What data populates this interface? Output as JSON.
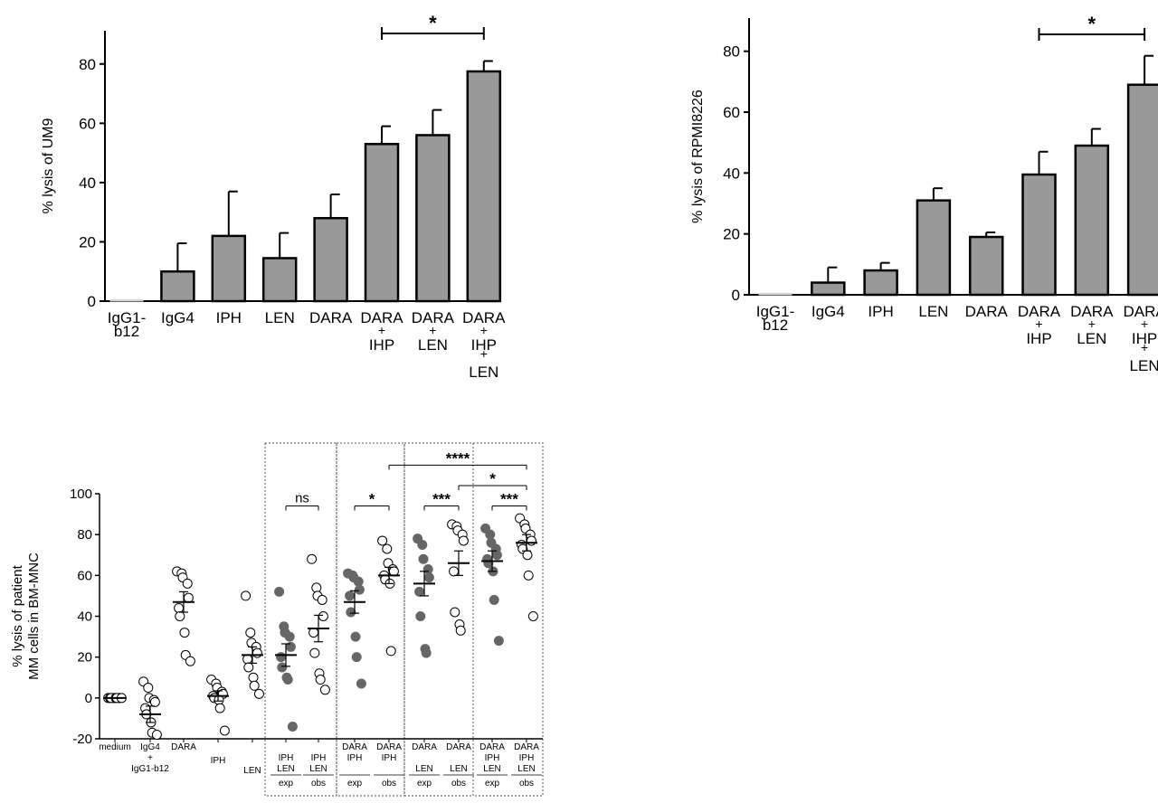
{
  "chart_data": [
    {
      "type": "bar",
      "title": "",
      "xlabel": "",
      "ylabel": "% lysis of UM9",
      "ylim": [
        0,
        90
      ],
      "yticks": [
        0,
        20,
        40,
        60,
        80
      ],
      "categories": [
        [
          "IgG1-",
          "b12"
        ],
        [
          "IgG4"
        ],
        [
          "IPH"
        ],
        [
          "LEN"
        ],
        [
          "DARA"
        ],
        [
          "DARA",
          "+",
          "IHP"
        ],
        [
          "DARA",
          "+",
          "LEN"
        ],
        [
          "DARA",
          "+",
          "IHP",
          "+",
          "LEN"
        ]
      ],
      "values": [
        0.5,
        10,
        22,
        14.5,
        28,
        53,
        56,
        77.5
      ],
      "errors": [
        0,
        9.5,
        15,
        8.5,
        8,
        6,
        8.5,
        3.5
      ],
      "bar_colors": [
        "#d4d4d4",
        "#999999",
        "#999999",
        "#999999",
        "#999999",
        "#999999",
        "#999999",
        "#999999"
      ],
      "significance": [
        {
          "from": 5,
          "to": 7,
          "label": "*"
        }
      ]
    },
    {
      "type": "bar",
      "title": "",
      "xlabel": "",
      "ylabel": "% lysis of RPMI8226",
      "ylim": [
        0,
        90
      ],
      "yticks": [
        0,
        20,
        40,
        60,
        80
      ],
      "categories": [
        [
          "IgG1-",
          "b12"
        ],
        [
          "IgG4"
        ],
        [
          "IPH"
        ],
        [
          "LEN"
        ],
        [
          "DARA"
        ],
        [
          "DARA",
          "+",
          "IHP"
        ],
        [
          "DARA",
          "+",
          "LEN"
        ],
        [
          "DARA",
          "+",
          "IHP",
          "+",
          "LEN"
        ]
      ],
      "values": [
        0.5,
        4,
        8,
        31,
        19,
        39.5,
        49,
        69
      ],
      "errors": [
        0,
        5,
        2.5,
        4,
        1.5,
        7.5,
        5.5,
        9.5
      ],
      "bar_colors": [
        "#d4d4d4",
        "#999999",
        "#999999",
        "#999999",
        "#999999",
        "#999999",
        "#999999",
        "#999999"
      ],
      "significance": [
        {
          "from": 5,
          "to": 7,
          "label": "*"
        }
      ]
    },
    {
      "type": "scatter",
      "title": "",
      "xlabel": "",
      "ylabel": [
        "% lysis of patient",
        "MM cells in BM-MNC"
      ],
      "ylim": [
        -20,
        100
      ],
      "yticks": [
        -20,
        0,
        20,
        40,
        60,
        80,
        100
      ],
      "groups": [
        {
          "labels": [
            "medium"
          ],
          "sublabel": "",
          "filled": false,
          "mean": 0,
          "sem": 0.5,
          "points": [
            0,
            0,
            0,
            0,
            0,
            0,
            0,
            0,
            0,
            0
          ]
        },
        {
          "labels": [
            "IgG4",
            "+",
            "IgG1-b12"
          ],
          "sublabel": "",
          "filled": false,
          "mean": -8,
          "sem": 4,
          "points": [
            8,
            5,
            0,
            -1,
            -2,
            -5,
            -8,
            -12,
            -17,
            -18
          ]
        },
        {
          "labels": [
            "DARA"
          ],
          "sublabel": "",
          "filled": false,
          "mean": 47,
          "sem": 5,
          "points": [
            62,
            61,
            59,
            56,
            49,
            44,
            40,
            32,
            21,
            18
          ]
        },
        {
          "labels": [
            "IPH"
          ],
          "sublabel": "",
          "filled": false,
          "mean": 1,
          "sem": 2.5,
          "points": [
            9,
            7,
            5,
            3,
            2,
            1,
            0,
            -1,
            -5,
            -16
          ]
        },
        {
          "labels": [
            "LEN"
          ],
          "sublabel": "",
          "filled": false,
          "mean": 21,
          "sem": 4,
          "points": [
            50,
            32,
            27,
            25,
            22,
            19,
            15,
            10,
            6,
            2
          ]
        },
        {
          "labels": [
            "IPH",
            "LEN"
          ],
          "sublabel": "exp",
          "filled": true,
          "mean": 21,
          "sem": 5.5,
          "points": [
            52,
            35,
            32,
            30,
            25,
            20,
            15,
            10,
            9,
            -14
          ]
        },
        {
          "labels": [
            "IPH",
            "LEN"
          ],
          "sublabel": "obs",
          "filled": false,
          "mean": 34,
          "sem": 6.5,
          "points": [
            68,
            54,
            50,
            48,
            40,
            32,
            22,
            12,
            9,
            4
          ]
        },
        {
          "labels": [
            "DARA",
            "IPH"
          ],
          "sublabel": "exp",
          "filled": true,
          "mean": 47,
          "sem": 5.5,
          "points": [
            61,
            60,
            59,
            57,
            53,
            50,
            42,
            30,
            20,
            7
          ]
        },
        {
          "labels": [
            "DARA",
            "IPH"
          ],
          "sublabel": "obs",
          "filled": false,
          "mean": 60,
          "sem": 4,
          "points": [
            77,
            73,
            66,
            63,
            62,
            60,
            58,
            56,
            23
          ]
        },
        {
          "labels": [
            "DARA",
            "LEN"
          ],
          "sublabel": "exp",
          "filled": true,
          "mean": 56,
          "sem": 6,
          "points": [
            78,
            75,
            68,
            63,
            59,
            52,
            40,
            24,
            22
          ]
        },
        {
          "labels": [
            "DARA",
            "LEN"
          ],
          "sublabel": "obs",
          "filled": false,
          "mean": 66,
          "sem": 6,
          "points": [
            85,
            84,
            82,
            80,
            77,
            62,
            42,
            36,
            33
          ]
        },
        {
          "labels": [
            "DARA",
            "IPH",
            "LEN"
          ],
          "sublabel": "exp",
          "filled": true,
          "mean": 67,
          "sem": 5,
          "points": [
            83,
            80,
            76,
            73,
            70,
            68,
            66,
            62,
            48,
            28
          ]
        },
        {
          "labels": [
            "DARA",
            "IPH",
            "LEN"
          ],
          "sublabel": "obs",
          "filled": false,
          "mean": 76,
          "sem": 4,
          "points": [
            88,
            85,
            83,
            80,
            77,
            75,
            73,
            70,
            60,
            40
          ]
        }
      ],
      "significance": [
        {
          "from": 5,
          "to": 6,
          "label": "ns",
          "y": 94
        },
        {
          "from": 7,
          "to": 8,
          "label": "*",
          "y": 94
        },
        {
          "from": 9,
          "to": 10,
          "label": "***",
          "y": 94
        },
        {
          "from": 11,
          "to": 12,
          "label": "***",
          "y": 94
        },
        {
          "from": 8,
          "to": 12,
          "label": "****",
          "y": 114
        },
        {
          "from": 10,
          "to": 12,
          "label": "*",
          "y": 104
        }
      ]
    }
  ]
}
